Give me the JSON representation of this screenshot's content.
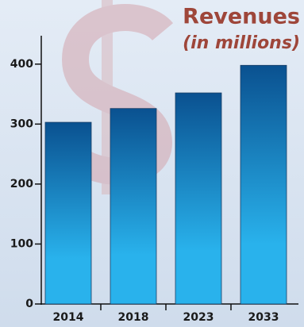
{
  "chart_data": {
    "type": "bar",
    "title": "Revenues",
    "subtitle": "(in millions)",
    "categories": [
      "2014",
      "2018",
      "2023",
      "2033"
    ],
    "values": [
      303,
      326,
      352,
      398
    ],
    "colors": [
      "#0a5190",
      "#29b2ec"
    ],
    "ylim": [
      0,
      450
    ],
    "yticks": [
      0,
      100,
      200,
      300,
      400
    ]
  }
}
